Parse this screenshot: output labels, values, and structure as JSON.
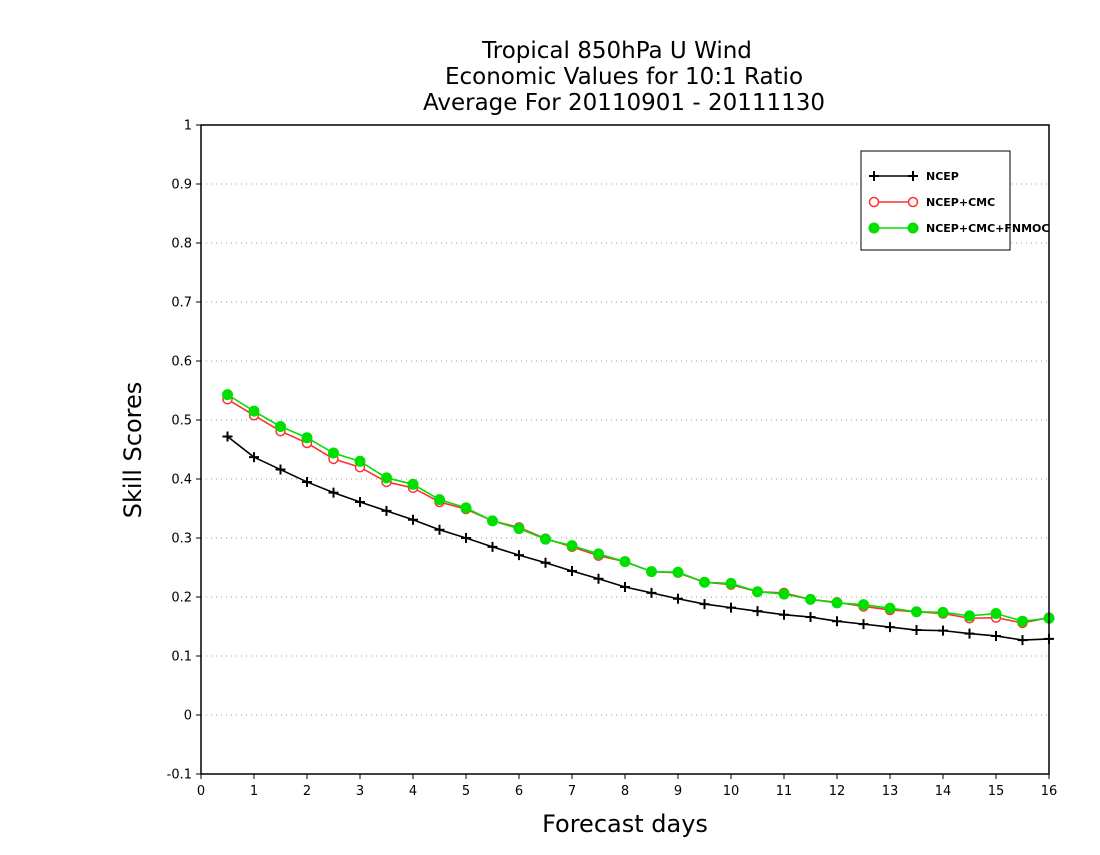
{
  "chart_data": {
    "type": "line",
    "title_lines": [
      "Tropical 850hPa U Wind",
      "Economic Values for 10:1 Ratio",
      "Average For 20110901 - 20111130"
    ],
    "xlabel": "Forecast days",
    "ylabel": "Skill Scores",
    "xlim": [
      0,
      16
    ],
    "ylim": [
      -0.1,
      1
    ],
    "x_ticks": [
      0,
      1,
      2,
      3,
      4,
      5,
      6,
      7,
      8,
      9,
      10,
      11,
      12,
      13,
      14,
      15,
      16
    ],
    "y_ticks": [
      -0.1,
      0,
      0.1,
      0.2,
      0.3,
      0.4,
      0.5,
      0.6,
      0.7,
      0.8,
      0.9,
      1
    ],
    "y_tick_labels": [
      "-0.1",
      "0",
      "0.1",
      "0.2",
      "0.3",
      "0.4",
      "0.5",
      "0.6",
      "0.7",
      "0.8",
      "0.9",
      "1"
    ],
    "x_tick_labels": [
      "0",
      "1",
      "2",
      "3",
      "4",
      "5",
      "6",
      "7",
      "8",
      "9",
      "10",
      "11",
      "12",
      "13",
      "14",
      "15",
      "16"
    ],
    "grid": "horizontal dotted",
    "legend_position": "top-right",
    "x": [
      0.5,
      1,
      1.5,
      2,
      2.5,
      3,
      3.5,
      4,
      4.5,
      5,
      5.5,
      6,
      6.5,
      7,
      7.5,
      8,
      8.5,
      9,
      9.5,
      10,
      10.5,
      11,
      11.5,
      12,
      12.5,
      13,
      13.5,
      14,
      14.5,
      15,
      15.5,
      16
    ],
    "series": [
      {
        "name": "NCEP",
        "color": "#000000",
        "marker": "plus",
        "values": [
          0.472,
          0.437,
          0.416,
          0.395,
          0.377,
          0.361,
          0.346,
          0.331,
          0.314,
          0.3,
          0.285,
          0.271,
          0.258,
          0.244,
          0.231,
          0.217,
          0.207,
          0.197,
          0.188,
          0.182,
          0.176,
          0.17,
          0.166,
          0.159,
          0.154,
          0.149,
          0.144,
          0.143,
          0.138,
          0.134,
          0.127,
          0.129
        ]
      },
      {
        "name": "NCEP+CMC",
        "color": "#ff3030",
        "marker": "open-circle",
        "values": [
          0.535,
          0.508,
          0.481,
          0.461,
          0.434,
          0.42,
          0.395,
          0.385,
          0.361,
          0.349,
          0.329,
          0.318,
          0.299,
          0.285,
          0.27,
          0.26,
          0.243,
          0.241,
          0.225,
          0.221,
          0.209,
          0.207,
          0.196,
          0.191,
          0.184,
          0.178,
          0.175,
          0.172,
          0.164,
          0.165,
          0.156,
          0.165
        ]
      },
      {
        "name": "NCEP+CMC+FNMOC",
        "color": "#00e000",
        "marker": "filled-circle",
        "values": [
          0.543,
          0.515,
          0.489,
          0.47,
          0.444,
          0.43,
          0.402,
          0.391,
          0.365,
          0.351,
          0.329,
          0.316,
          0.298,
          0.287,
          0.273,
          0.26,
          0.243,
          0.242,
          0.225,
          0.223,
          0.209,
          0.205,
          0.196,
          0.19,
          0.187,
          0.181,
          0.175,
          0.174,
          0.168,
          0.172,
          0.159,
          0.164
        ]
      }
    ]
  }
}
